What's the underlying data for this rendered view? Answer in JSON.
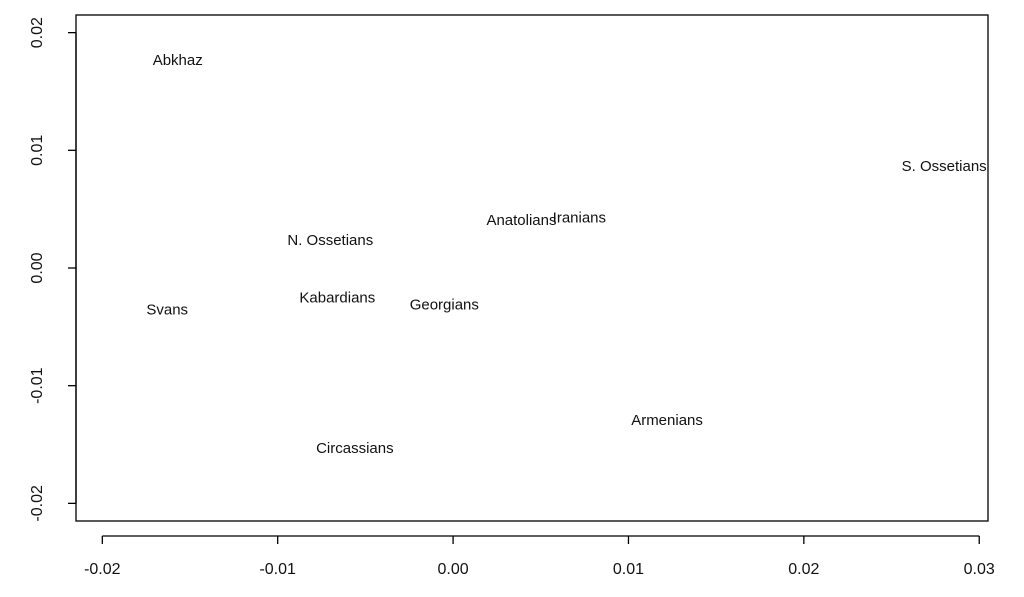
{
  "chart_data": {
    "type": "scatter",
    "title": "",
    "xlabel": "",
    "ylabel": "",
    "xlim": [
      -0.0215,
      0.0305
    ],
    "ylim": [
      -0.0215,
      0.0215
    ],
    "grid": false,
    "x_ticks": [
      {
        "value": -0.02,
        "label": "-0.02"
      },
      {
        "value": -0.01,
        "label": "-0.01"
      },
      {
        "value": 0.0,
        "label": "0.00"
      },
      {
        "value": 0.01,
        "label": "0.01"
      },
      {
        "value": 0.02,
        "label": "0.02"
      },
      {
        "value": 0.03,
        "label": "0.03"
      }
    ],
    "y_ticks": [
      {
        "value": -0.02,
        "label": "-0.02"
      },
      {
        "value": -0.01,
        "label": "-0.01"
      },
      {
        "value": 0.0,
        "label": "0.00"
      },
      {
        "value": 0.01,
        "label": "0.01"
      },
      {
        "value": 0.02,
        "label": "0.02"
      }
    ],
    "points": [
      {
        "label": "Abkhaz",
        "x": -0.0157,
        "y": 0.0176
      },
      {
        "label": "S. Ossetians",
        "x": 0.028,
        "y": 0.0086
      },
      {
        "label": "Iranians",
        "x": 0.0072,
        "y": 0.0042
      },
      {
        "label": "Anatolians",
        "x": 0.0039,
        "y": 0.004
      },
      {
        "label": "N. Ossetians",
        "x": -0.007,
        "y": 0.0023
      },
      {
        "label": "Kabardians",
        "x": -0.0066,
        "y": -0.0026
      },
      {
        "label": "Georgians",
        "x": -0.0005,
        "y": -0.0032
      },
      {
        "label": "Svans",
        "x": -0.0163,
        "y": -0.0036
      },
      {
        "label": "Armenians",
        "x": 0.0122,
        "y": -0.013
      },
      {
        "label": "Circassians",
        "x": -0.0056,
        "y": -0.0154
      }
    ]
  }
}
